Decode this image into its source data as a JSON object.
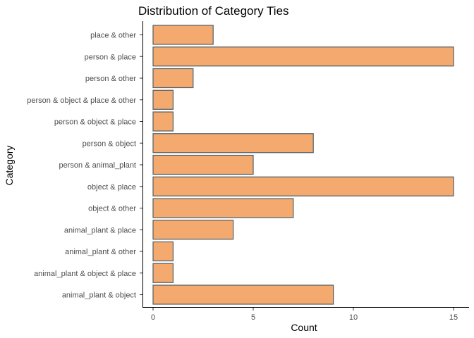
{
  "chart_data": {
    "type": "bar",
    "orientation": "horizontal",
    "title": "Distribution of Category Ties",
    "xlabel": "Count",
    "ylabel": "Category",
    "categories": [
      "place & other",
      "person & place",
      "person & other",
      "person & object & place & other",
      "person & object & place",
      "person & object",
      "person & animal_plant",
      "object & place",
      "object & other",
      "animal_plant & place",
      "animal_plant & other",
      "animal_plant & object & place",
      "animal_plant & object"
    ],
    "values": [
      3,
      15,
      2,
      1,
      1,
      8,
      5,
      15,
      7,
      4,
      1,
      1,
      9
    ],
    "xlim": [
      0,
      15.75
    ],
    "xticks": [
      0,
      5,
      10,
      15
    ],
    "xtick_labels": [
      "0",
      "5",
      "10",
      "15"
    ],
    "grid": false,
    "colors": {
      "bar_fill": "#f4a96e",
      "bar_outline": "#4f5f66"
    }
  }
}
